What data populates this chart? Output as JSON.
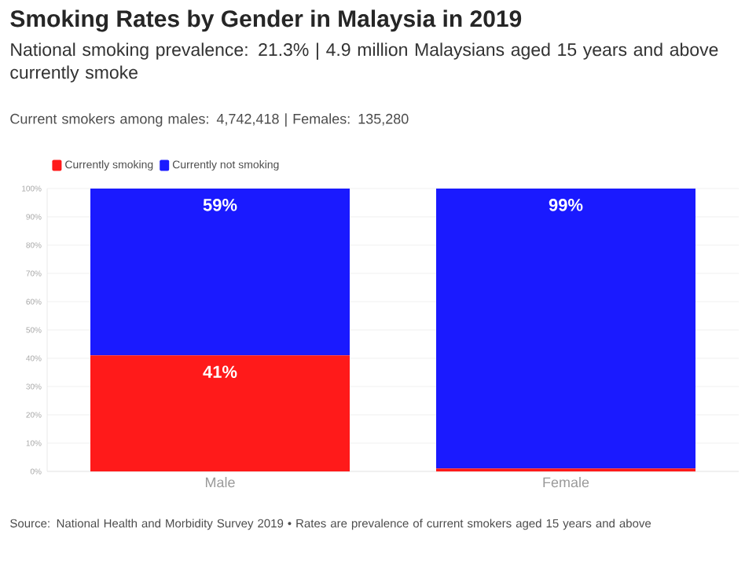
{
  "chart_data": {
    "type": "bar",
    "stacked": true,
    "title": "Smoking Rates by Gender in Malaysia in 2019",
    "subtitle": "National smoking prevalence: 21.3% | 4.9 million Malaysians aged 15 years and above currently smoke",
    "annotations": [
      "Current smokers among males: 4,742,418 | Females: 135,280",
      "Source: National Health and Morbidity Survey 2019 • Rates are prevalence of current smokers aged 15 years and above"
    ],
    "categories": [
      "Male",
      "Female"
    ],
    "series": [
      {
        "name": "Currently smoking",
        "color": "#ff1a1a",
        "values": [
          41,
          1
        ],
        "value_labels": [
          "41%",
          null
        ]
      },
      {
        "name": "Currently not smoking",
        "color": "#1a1aff",
        "values": [
          59,
          99
        ],
        "value_labels": [
          "59%",
          "99%"
        ]
      }
    ],
    "ylim": [
      0,
      100
    ],
    "yticks": [
      {
        "value": 0,
        "label": "0%"
      },
      {
        "value": 10,
        "label": "10%"
      },
      {
        "value": 20,
        "label": "20%"
      },
      {
        "value": 30,
        "label": "30%"
      },
      {
        "value": 40,
        "label": "40%"
      },
      {
        "value": 50,
        "label": "50%"
      },
      {
        "value": 60,
        "label": "60%"
      },
      {
        "value": 70,
        "label": "70%"
      },
      {
        "value": 80,
        "label": "80%"
      },
      {
        "value": 90,
        "label": "90%"
      },
      {
        "value": 100,
        "label": "100%"
      }
    ],
    "grid": "y",
    "legend": "top left"
  }
}
